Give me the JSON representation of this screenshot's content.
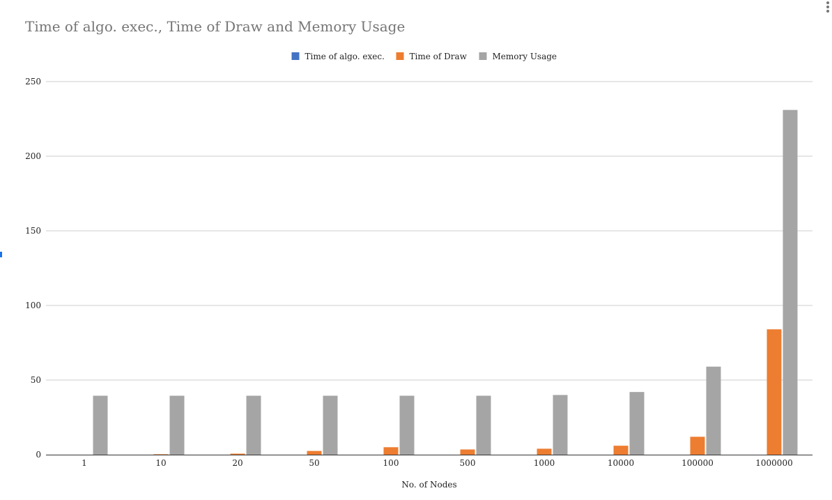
{
  "chart_data": {
    "type": "bar",
    "title": "Time of algo. exec., Time of Draw and Memory Usage",
    "xlabel": "No. of Nodes",
    "ylabel": "",
    "categories": [
      "1",
      "10",
      "20",
      "50",
      "100",
      "500",
      "1000",
      "10000",
      "100000",
      "1000000"
    ],
    "ylim": [
      0,
      250
    ],
    "yticks": [
      0,
      50,
      100,
      150,
      200,
      250
    ],
    "grid": true,
    "legend_position": "top",
    "series": [
      {
        "name": "Time of algo. exec.",
        "color": "#4472c4",
        "values": [
          0,
          0,
          0,
          0,
          0,
          0,
          0,
          0,
          0,
          0
        ]
      },
      {
        "name": "Time of Draw",
        "color": "#ed7d31",
        "values": [
          0,
          0.3,
          0.7,
          2.5,
          5,
          3.5,
          4,
          6,
          12,
          84
        ]
      },
      {
        "name": "Memory Usage",
        "color": "#a5a5a5",
        "values": [
          39.5,
          39.5,
          39.5,
          39.5,
          39.5,
          39.5,
          40,
          42,
          59,
          231
        ]
      }
    ]
  }
}
